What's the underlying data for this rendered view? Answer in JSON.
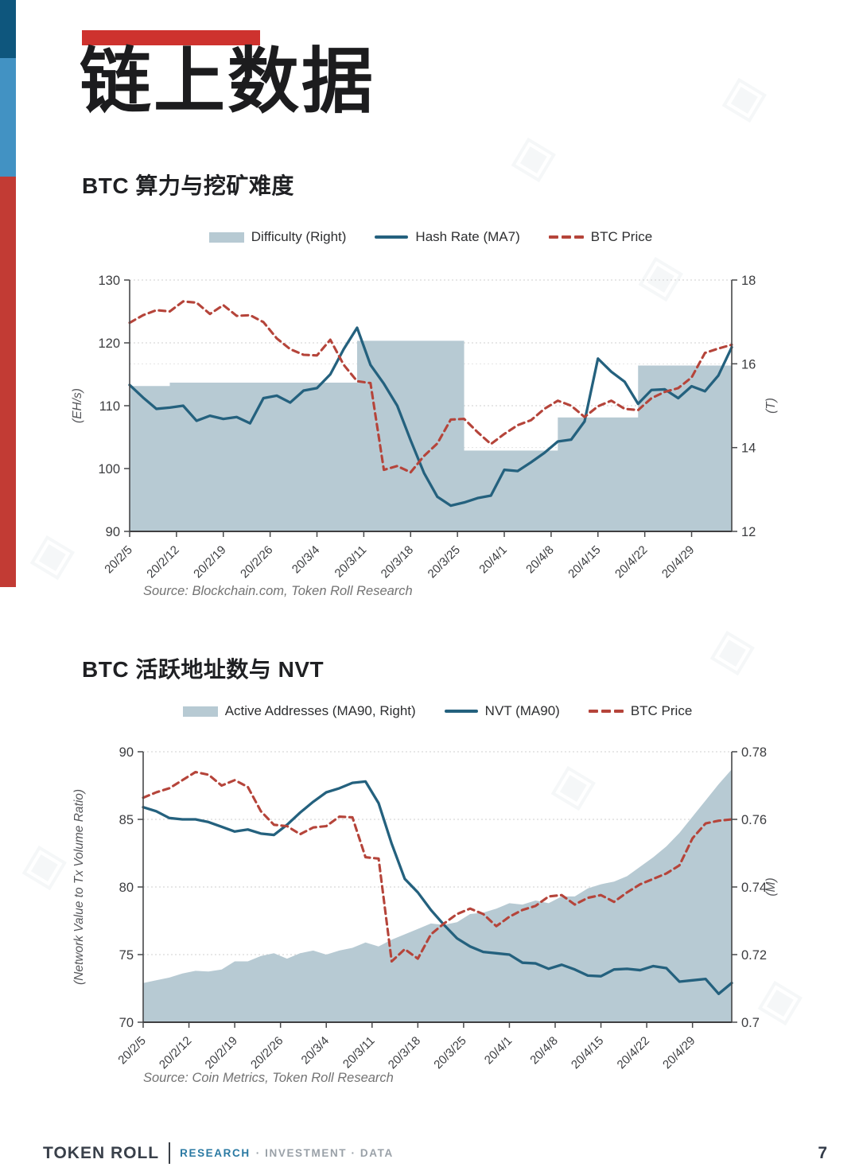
{
  "header": {
    "title": "链上数据"
  },
  "decor": {
    "watermark_glyph": "◈",
    "edge_bar_colors": {
      "top": "#0e567d",
      "middle": "#4292c3",
      "bottom": "#c23b34"
    },
    "accent_bar_color": "#ce322e"
  },
  "chart_data": [
    {
      "type": "combo(step-area + line + dashed-line)",
      "title": "BTC 算力与挖矿难度",
      "source": "Source: Blockchain.com, Token Roll Research",
      "x_min": 0,
      "x_max": 90,
      "x_days": [
        0,
        2,
        4,
        6,
        8,
        10,
        12,
        14,
        16,
        18,
        20,
        22,
        24,
        26,
        28,
        30,
        32,
        34,
        36,
        38,
        40,
        42,
        44,
        46,
        48,
        50,
        52,
        54,
        56,
        58,
        60,
        62,
        64,
        66,
        68,
        70,
        72,
        74,
        76,
        78,
        80,
        82,
        84,
        86,
        88,
        90
      ],
      "x_tick_days": [
        0,
        7,
        14,
        21,
        28,
        35,
        42,
        49,
        56,
        63,
        70,
        77,
        84
      ],
      "x_tick_labels": [
        "20/2/5",
        "20/2/12",
        "20/2/19",
        "20/2/26",
        "20/3/4",
        "20/3/11",
        "20/3/18",
        "20/3/25",
        "20/4/1",
        "20/4/8",
        "20/4/15",
        "20/4/22",
        "20/4/29"
      ],
      "left_axis": {
        "label": "(EH/s)",
        "min": 90,
        "max": 130,
        "ticks": [
          90,
          100,
          110,
          120,
          130
        ],
        "tick_labels": [
          "90",
          "100",
          "110",
          "120",
          "130"
        ]
      },
      "right_axis": {
        "label": "(T)",
        "min": 12,
        "max": 18,
        "ticks": [
          12,
          14,
          16,
          18
        ],
        "tick_labels": [
          "12",
          "14",
          "16",
          "18"
        ]
      },
      "series": [
        {
          "name": "Difficulty (Right)",
          "type": "step-area",
          "axis": "right",
          "color": "#b7cad3",
          "values": [
            15.47,
            15.47,
            15.47,
            15.55,
            15.55,
            15.55,
            15.55,
            15.55,
            15.55,
            15.55,
            15.55,
            15.55,
            15.55,
            15.55,
            15.55,
            15.55,
            15.55,
            16.55,
            16.55,
            16.55,
            16.55,
            16.55,
            16.55,
            16.55,
            16.55,
            13.93,
            13.93,
            13.93,
            13.93,
            13.93,
            13.93,
            13.93,
            14.72,
            14.72,
            14.72,
            14.72,
            14.72,
            14.72,
            15.96,
            15.96,
            15.96,
            15.96,
            15.96,
            15.96,
            15.96,
            16.1
          ]
        },
        {
          "name": "Hash Rate (MA7)",
          "type": "line",
          "axis": "left",
          "color": "#24617e",
          "values": [
            113.3,
            111.3,
            109.5,
            109.7,
            110.0,
            107.6,
            108.4,
            107.9,
            108.2,
            107.2,
            111.2,
            111.6,
            110.5,
            112.4,
            112.8,
            115.0,
            119.0,
            122.4,
            116.5,
            113.5,
            110.0,
            104.5,
            99.3,
            95.5,
            94.1,
            94.6,
            95.3,
            95.7,
            99.8,
            99.6,
            101.0,
            102.5,
            104.3,
            104.6,
            107.5,
            117.5,
            115.4,
            113.8,
            110.3,
            112.5,
            112.6,
            111.2,
            113.1,
            112.3,
            114.8,
            119.3
          ]
        },
        {
          "name": "BTC Price",
          "type": "dashed-line",
          "axis": "left",
          "color": "#b5443a",
          "values": [
            123.2,
            124.4,
            125.2,
            125.0,
            126.6,
            126.4,
            124.6,
            126.0,
            124.3,
            124.4,
            123.3,
            120.7,
            119.0,
            118.1,
            118.0,
            120.5,
            116.5,
            113.9,
            113.6,
            99.8,
            100.4,
            99.4,
            102.0,
            104.0,
            107.8,
            107.9,
            105.8,
            103.9,
            105.5,
            106.9,
            107.7,
            109.5,
            110.8,
            110.0,
            108.2,
            109.9,
            110.8,
            109.5,
            109.3,
            111.2,
            112.2,
            112.8,
            114.5,
            118.4,
            119.1,
            119.7
          ]
        }
      ]
    },
    {
      "type": "combo(area + line + dashed-line)",
      "title": "BTC 活跃地址数与 NVT",
      "source": "Source: Coin Metrics, Token Roll Research",
      "x_min": 0,
      "x_max": 90,
      "x_days": [
        0,
        2,
        4,
        6,
        8,
        10,
        12,
        14,
        16,
        18,
        20,
        22,
        24,
        26,
        28,
        30,
        32,
        34,
        36,
        38,
        40,
        42,
        44,
        46,
        48,
        50,
        52,
        54,
        56,
        58,
        60,
        62,
        64,
        66,
        68,
        70,
        72,
        74,
        76,
        78,
        80,
        82,
        84,
        86,
        88,
        90
      ],
      "x_tick_days": [
        0,
        7,
        14,
        21,
        28,
        35,
        42,
        49,
        56,
        63,
        70,
        77,
        84
      ],
      "x_tick_labels": [
        "20/2/5",
        "20/2/12",
        "20/2/19",
        "20/2/26",
        "20/3/4",
        "20/3/11",
        "20/3/18",
        "20/3/25",
        "20/4/1",
        "20/4/8",
        "20/4/15",
        "20/4/22",
        "20/4/29"
      ],
      "left_axis": {
        "label": "(Network Value to Tx Volume Ratio)",
        "min": 70,
        "max": 90,
        "ticks": [
          70,
          75,
          80,
          85,
          90
        ],
        "tick_labels": [
          "70",
          "75",
          "80",
          "85",
          "90"
        ]
      },
      "right_axis": {
        "label": "(M)",
        "min": 0.7,
        "max": 0.78,
        "ticks": [
          0.7,
          0.72,
          0.74,
          0.76,
          0.78
        ],
        "tick_labels": [
          "0.7",
          "0.72",
          "0.74",
          "0.76",
          "0.78"
        ]
      },
      "series": [
        {
          "name": "Active Addresses (MA90, Right)",
          "type": "area",
          "axis": "right",
          "color": "#b7cad3",
          "values": [
            0.7116,
            0.7124,
            0.7132,
            0.7144,
            0.7152,
            0.715,
            0.7156,
            0.718,
            0.718,
            0.7196,
            0.7204,
            0.7188,
            0.7204,
            0.7212,
            0.72,
            0.7212,
            0.722,
            0.7236,
            0.7224,
            0.7244,
            0.726,
            0.7276,
            0.7292,
            0.7288,
            0.7296,
            0.732,
            0.7324,
            0.7336,
            0.7352,
            0.7348,
            0.736,
            0.7352,
            0.7372,
            0.7372,
            0.7396,
            0.7408,
            0.7416,
            0.7432,
            0.746,
            0.7488,
            0.752,
            0.756,
            0.7608,
            0.7656,
            0.7704,
            0.7748
          ]
        },
        {
          "name": "NVT (MA90)",
          "type": "line",
          "axis": "left",
          "color": "#24617e",
          "values": [
            85.9,
            85.6,
            85.1,
            85.0,
            85.0,
            84.8,
            84.45,
            84.1,
            84.25,
            83.95,
            83.85,
            84.6,
            85.5,
            86.3,
            87.0,
            87.3,
            87.7,
            87.8,
            86.2,
            83.2,
            80.6,
            79.6,
            78.3,
            77.2,
            76.2,
            75.6,
            75.2,
            75.1,
            75.0,
            74.4,
            74.35,
            73.95,
            74.25,
            73.9,
            73.45,
            73.4,
            73.9,
            73.95,
            73.85,
            74.15,
            74.0,
            73.0,
            73.1,
            73.2,
            72.1,
            72.9
          ]
        },
        {
          "name": "BTC Price",
          "type": "dashed-line",
          "axis": "left",
          "color": "#b5443a",
          "values": [
            86.6,
            87.0,
            87.3,
            87.9,
            88.5,
            88.3,
            87.5,
            87.9,
            87.4,
            85.6,
            84.6,
            84.5,
            83.9,
            84.4,
            84.5,
            85.2,
            85.15,
            82.2,
            82.1,
            74.5,
            75.4,
            74.7,
            76.5,
            77.3,
            78.0,
            78.4,
            78.0,
            77.1,
            77.8,
            78.3,
            78.6,
            79.3,
            79.4,
            78.7,
            79.2,
            79.4,
            78.9,
            79.6,
            80.2,
            80.6,
            81.0,
            81.6,
            83.6,
            84.7,
            84.9,
            85.0
          ]
        }
      ]
    }
  ],
  "footer": {
    "brand": "TOKEN ROLL",
    "research": "RESEARCH",
    "tagline_rest": "· INVESTMENT · DATA",
    "page_number": "7"
  }
}
